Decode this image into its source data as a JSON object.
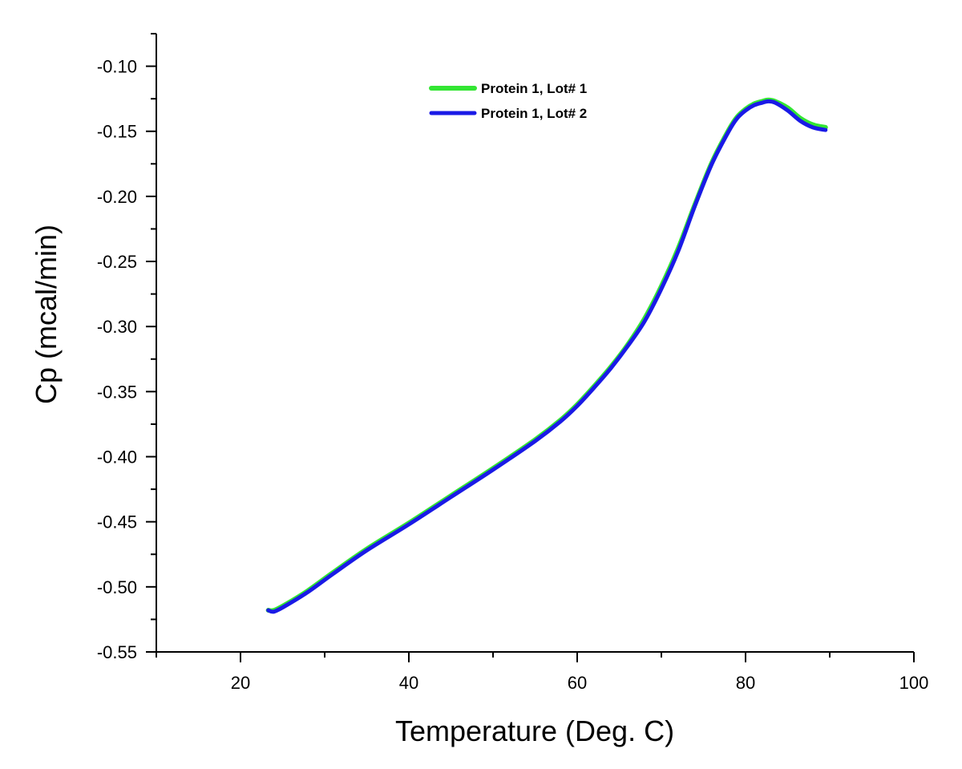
{
  "chart_data": {
    "type": "line",
    "title": "",
    "xlabel": "Temperature (Deg. C)",
    "ylabel": "Cp (mcal/min)",
    "xlim": [
      10,
      100
    ],
    "ylim": [
      -0.55,
      -0.075
    ],
    "xticks": [
      20,
      40,
      60,
      80,
      100
    ],
    "xtick_labels": [
      "20",
      "40",
      "60",
      "80",
      "100"
    ],
    "yticks": [
      -0.55,
      -0.5,
      -0.45,
      -0.4,
      -0.35,
      -0.3,
      -0.25,
      -0.2,
      -0.15,
      -0.1
    ],
    "ytick_labels": [
      "-0.55",
      "-0.50",
      "-0.45",
      "-0.40",
      "-0.35",
      "-0.30",
      "-0.25",
      "-0.20",
      "-0.15",
      "-0.10"
    ],
    "grid": false,
    "legend_position": "top-center",
    "series": [
      {
        "name": "Protein 1, Lot# 1",
        "color": "#33e633",
        "x": [
          23.3,
          24.0,
          25.5,
          28.0,
          31.0,
          35.0,
          40.0,
          45.0,
          50.0,
          55.0,
          58.0,
          60.0,
          62.0,
          64.0,
          66.0,
          68.0,
          70.0,
          72.0,
          74.0,
          76.0,
          78.0,
          79.0,
          80.0,
          81.0,
          82.0,
          82.7,
          83.5,
          85.0,
          86.5,
          88.0,
          89.5
        ],
        "values": [
          -0.518,
          -0.518,
          -0.513,
          -0.503,
          -0.489,
          -0.471,
          -0.451,
          -0.43,
          -0.409,
          -0.387,
          -0.372,
          -0.36,
          -0.346,
          -0.331,
          -0.314,
          -0.294,
          -0.269,
          -0.24,
          -0.206,
          -0.174,
          -0.149,
          -0.139,
          -0.133,
          -0.129,
          -0.127,
          -0.126,
          -0.127,
          -0.132,
          -0.14,
          -0.145,
          -0.147
        ]
      },
      {
        "name": "Protein 1, Lot# 2",
        "color": "#1a1ae6",
        "x": [
          23.3,
          24.0,
          25.5,
          28.0,
          31.0,
          35.0,
          40.0,
          45.0,
          50.0,
          55.0,
          58.0,
          60.0,
          62.0,
          64.0,
          66.0,
          68.0,
          70.0,
          72.0,
          74.0,
          76.0,
          78.0,
          79.0,
          80.0,
          81.0,
          82.0,
          82.7,
          83.5,
          85.0,
          86.5,
          88.0,
          89.5
        ],
        "values": [
          -0.518,
          -0.519,
          -0.514,
          -0.504,
          -0.49,
          -0.472,
          -0.452,
          -0.431,
          -0.41,
          -0.388,
          -0.373,
          -0.361,
          -0.347,
          -0.332,
          -0.315,
          -0.296,
          -0.271,
          -0.242,
          -0.207,
          -0.175,
          -0.15,
          -0.14,
          -0.134,
          -0.13,
          -0.128,
          -0.127,
          -0.128,
          -0.134,
          -0.142,
          -0.147,
          -0.149
        ]
      }
    ]
  }
}
